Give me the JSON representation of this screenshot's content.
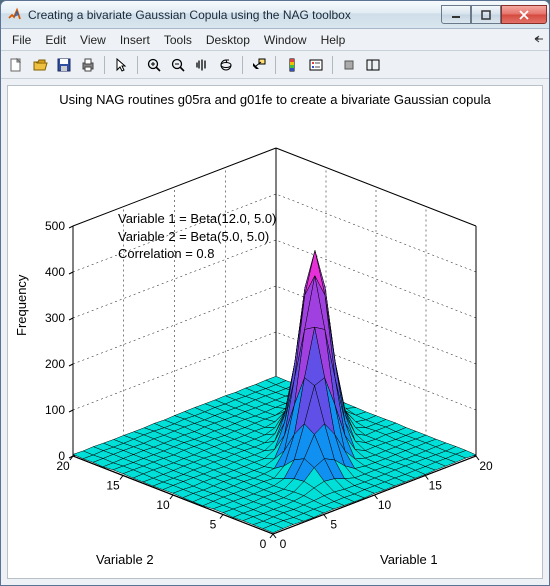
{
  "window": {
    "title": "Creating a bivariate Gaussian Copula using the NAG toolbox"
  },
  "menus": [
    "File",
    "Edit",
    "View",
    "Insert",
    "Tools",
    "Desktop",
    "Window",
    "Help"
  ],
  "toolbar_icons": [
    "new-file-icon",
    "open-folder-icon",
    "save-icon",
    "print-icon",
    "sep",
    "pointer-icon",
    "sep",
    "zoom-in-icon",
    "zoom-out-icon",
    "pan-icon",
    "rotate3d-icon",
    "sep",
    "data-cursor-icon",
    "sep",
    "insert-colorbar-icon",
    "insert-legend-icon",
    "sep",
    "hide-plot-icon",
    "dock-icon"
  ],
  "figure": {
    "title": "Using NAG routines g05ra and g01fe to create a bivariate Gaussian copula",
    "zlabel": "Frequency",
    "xlabel": "Variable 1",
    "ylabel": "Variable 2",
    "x_ticks": [
      0,
      5,
      10,
      15,
      20
    ],
    "y_ticks": [
      0,
      5,
      10,
      15,
      20
    ],
    "z_ticks": [
      0,
      100,
      200,
      300,
      400,
      500
    ],
    "xlim": [
      0,
      20
    ],
    "ylim": [
      0,
      20
    ],
    "zlim": [
      0,
      500
    ],
    "annotation_lines": [
      "Variable 1 = Beta(12.0, 5.0)",
      "Variable 2 = Beta(5.0, 5.0)",
      "Correlation = 0.8"
    ],
    "colors": {
      "background": "#ffffff",
      "grid": "#000000",
      "surface_low": "#00e0d8",
      "surface_mid1": "#1090f0",
      "surface_mid2": "#6050e8",
      "surface_mid3": "#a040e0",
      "surface_high": "#e830d8",
      "surface_edge": "#000000"
    }
  }
}
